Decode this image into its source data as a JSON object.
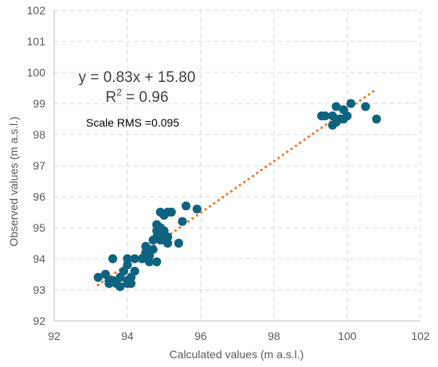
{
  "chart_data": {
    "type": "scatter",
    "xlabel": "Calculated values (m a.s.l.)",
    "ylabel": "Observed values (m a.s.l.)",
    "xlim": [
      92,
      102
    ],
    "ylim": [
      92,
      102
    ],
    "xticks": [
      92,
      94,
      96,
      98,
      100,
      102
    ],
    "yticks": [
      92,
      93,
      94,
      95,
      96,
      97,
      98,
      99,
      100,
      101,
      102
    ],
    "grid": true,
    "legend": "none",
    "annotations": {
      "equation": "y = 0.83x + 15.80",
      "r2_prefix": "R",
      "r2_sup": "2",
      "r2_suffix": " = 0.96",
      "rms": "Scale RMS =0.095"
    },
    "colors": {
      "points": "#0e6380",
      "trendline": "#ed7d31",
      "grid": "#d9d9d9",
      "axis": "#bfbfbf"
    },
    "trendline": {
      "type": "linear",
      "slope": 0.83,
      "intercept": 15.8,
      "x_range": [
        93.2,
        100.8
      ]
    },
    "series": [
      {
        "points": [
          [
            93.2,
            93.4
          ],
          [
            93.4,
            93.5
          ],
          [
            93.5,
            93.3
          ],
          [
            93.5,
            93.2
          ],
          [
            93.6,
            94.0
          ],
          [
            93.6,
            93.3
          ],
          [
            93.7,
            93.2
          ],
          [
            93.8,
            93.4
          ],
          [
            93.8,
            93.1
          ],
          [
            93.9,
            93.6
          ],
          [
            94.0,
            93.2
          ],
          [
            94.0,
            93.3
          ],
          [
            94.0,
            93.8
          ],
          [
            94.0,
            94.0
          ],
          [
            94.1,
            93.2
          ],
          [
            94.1,
            93.4
          ],
          [
            94.2,
            93.6
          ],
          [
            94.2,
            94.0
          ],
          [
            94.4,
            94.0
          ],
          [
            94.5,
            94.2
          ],
          [
            94.5,
            94.4
          ],
          [
            94.6,
            93.9
          ],
          [
            94.6,
            94.1
          ],
          [
            94.7,
            94.6
          ],
          [
            94.7,
            94.3
          ],
          [
            94.8,
            93.9
          ],
          [
            94.8,
            94.7
          ],
          [
            94.8,
            94.9
          ],
          [
            94.8,
            95.1
          ],
          [
            94.9,
            95.0
          ],
          [
            94.9,
            94.6
          ],
          [
            95.0,
            94.9
          ],
          [
            95.0,
            94.6
          ],
          [
            95.0,
            95.4
          ],
          [
            95.1,
            95.5
          ],
          [
            95.1,
            94.7
          ],
          [
            95.2,
            95.5
          ],
          [
            95.4,
            94.5
          ],
          [
            95.5,
            95.2
          ],
          [
            95.6,
            95.7
          ],
          [
            95.9,
            95.6
          ],
          [
            94.9,
            95.5
          ],
          [
            95.0,
            94.8
          ],
          [
            95.1,
            94.5
          ],
          [
            99.3,
            98.6
          ],
          [
            99.4,
            98.6
          ],
          [
            99.6,
            98.3
          ],
          [
            99.6,
            98.6
          ],
          [
            99.7,
            98.4
          ],
          [
            99.8,
            98.5
          ],
          [
            99.7,
            98.9
          ],
          [
            99.9,
            98.8
          ],
          [
            100.0,
            98.6
          ],
          [
            100.1,
            99.0
          ],
          [
            100.5,
            98.9
          ],
          [
            100.8,
            98.5
          ],
          [
            99.9,
            98.5
          ]
        ]
      }
    ]
  }
}
